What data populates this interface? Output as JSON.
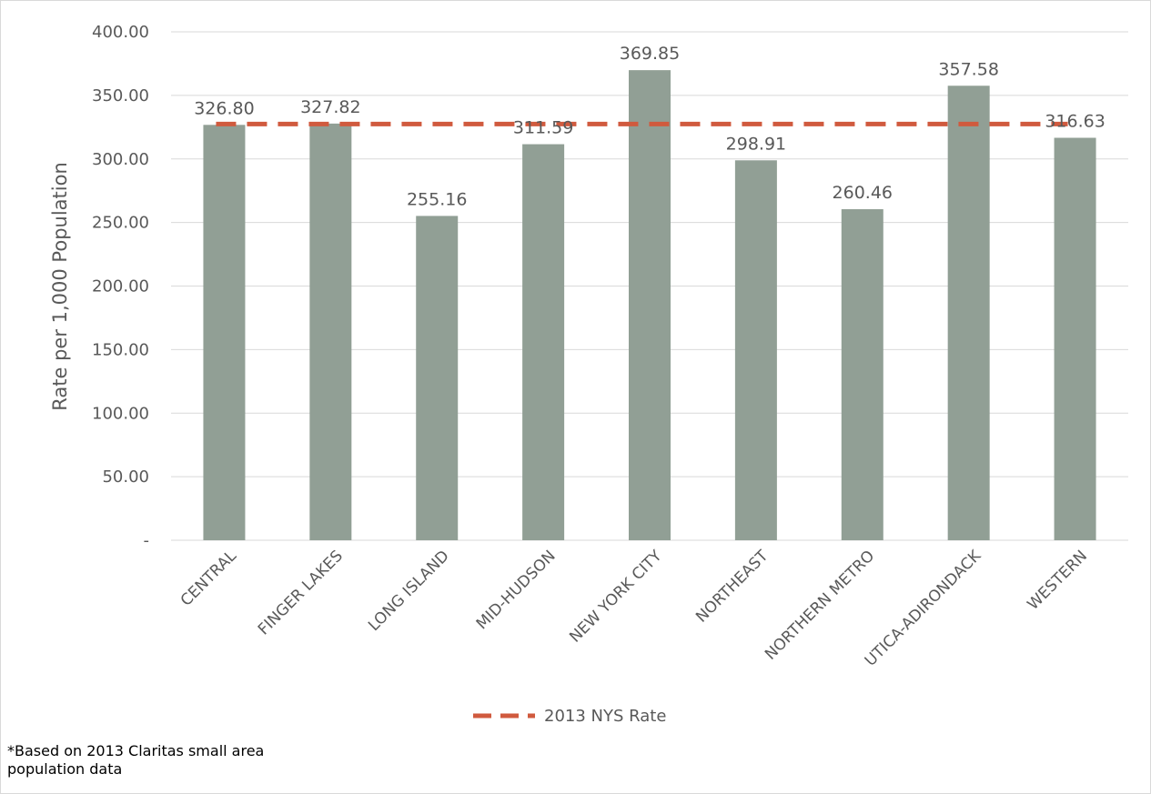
{
  "chart_data": {
    "type": "bar",
    "title": "",
    "xlabel": "",
    "ylabel": "Rate per 1,000 Population",
    "ylim": [
      0,
      400
    ],
    "yticks": [
      0,
      50,
      100,
      150,
      200,
      250,
      300,
      350,
      400
    ],
    "ytick_labels": [
      "-",
      "50.00",
      "100.00",
      "150.00",
      "200.00",
      "250.00",
      "300.00",
      "350.00",
      "400.00"
    ],
    "categories": [
      "CENTRAL",
      "FINGER LAKES",
      "LONG ISLAND",
      "MID-HUDSON",
      "NEW YORK CITY",
      "NORTHEAST",
      "NORTHERN METRO",
      "UTICA-ADIRONDACK",
      "WESTERN"
    ],
    "values": [
      326.8,
      327.82,
      255.16,
      311.59,
      369.85,
      298.91,
      260.46,
      357.58,
      316.63
    ],
    "value_labels": [
      "326.80",
      "327.82",
      "255.16",
      "311.59",
      "369.85",
      "298.91",
      "260.46",
      "357.58",
      "316.63"
    ],
    "reference_line": {
      "name": "2013 NYS Rate",
      "value": 327.5,
      "style": "dashed"
    },
    "grid": true,
    "legend_position": "bottom-center",
    "colors": {
      "bar": "#919f95",
      "reference_line": "#d05a3e",
      "grid": "#d9d9d9",
      "text": "#595959"
    }
  },
  "footnote": "*Based on 2013 Claritas small area population data"
}
